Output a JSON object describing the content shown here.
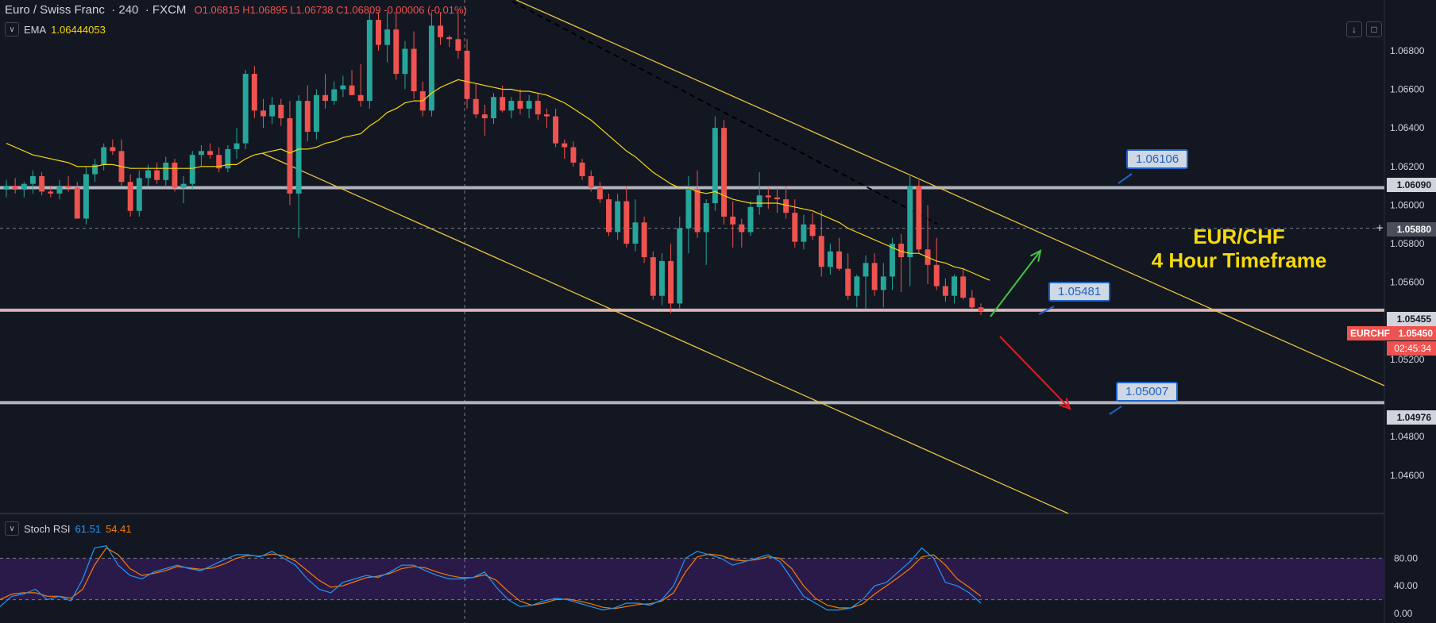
{
  "header": {
    "symbol_name": "Euro / Swiss Franc",
    "interval": "240",
    "exchange": "FXCM",
    "ohlc": "O1.06815 H1.06895 L1.06738 C1.06809 -0.00006 (-0.01%)"
  },
  "ema": {
    "label": "EMA",
    "value": "1.06444053"
  },
  "stoch": {
    "label": "Stoch RSI",
    "k_value": "61.51",
    "d_value": "54.41"
  },
  "overlay": {
    "title_line1": "EUR/CHF",
    "title_line2": "4 Hour Timeframe"
  },
  "callouts": [
    {
      "text": "1.06106"
    },
    {
      "text": "1.05481"
    },
    {
      "text": "1.05007"
    }
  ],
  "price_tags": {
    "level1": "1.06090",
    "level2": "1.05880",
    "level3": "1.05455",
    "current_symbol": "EURCHF",
    "current_price": "1.05450",
    "countdown": "02:45:34",
    "level4": "1.04976"
  },
  "colors": {
    "background": "#131722",
    "up": "#26a69a",
    "down": "#ef5350",
    "ema": "#f5d90a",
    "channel": "#e8c23a",
    "stoch_k": "#2196f3",
    "stoch_d": "#f57c00",
    "stoch_band": "#2a1a4a"
  },
  "chart_data": {
    "type": "candlestick",
    "price_axis": [
      "1.06800",
      "1.06600",
      "1.06400",
      "1.06200",
      "1.06000",
      "1.05800",
      "1.05600",
      "1.05200",
      "1.04800",
      "1.04600"
    ],
    "ylim": [
      1.0448,
      1.0696
    ],
    "horizontal_levels": [
      1.0609,
      1.05455,
      1.04976
    ],
    "stoch_axis": [
      "80.00",
      "40.00",
      "0.00"
    ],
    "stoch_band": [
      20,
      80
    ],
    "candles": [
      {
        "o": 1.0608,
        "h": 1.0613,
        "l": 1.0604,
        "c": 1.061
      },
      {
        "o": 1.061,
        "h": 1.0614,
        "l": 1.0606,
        "c": 1.0608
      },
      {
        "o": 1.0608,
        "h": 1.0612,
        "l": 1.0604,
        "c": 1.0611
      },
      {
        "o": 1.0611,
        "h": 1.0618,
        "l": 1.0606,
        "c": 1.0615
      },
      {
        "o": 1.0615,
        "h": 1.0617,
        "l": 1.0605,
        "c": 1.0607
      },
      {
        "o": 1.0607,
        "h": 1.061,
        "l": 1.0604,
        "c": 1.0606
      },
      {
        "o": 1.0606,
        "h": 1.0613,
        "l": 1.0603,
        "c": 1.061
      },
      {
        "o": 1.061,
        "h": 1.0615,
        "l": 1.0607,
        "c": 1.0609
      },
      {
        "o": 1.0609,
        "h": 1.0612,
        "l": 1.0595,
        "c": 1.0593
      },
      {
        "o": 1.0593,
        "h": 1.062,
        "l": 1.059,
        "c": 1.0616
      },
      {
        "o": 1.0616,
        "h": 1.0624,
        "l": 1.0612,
        "c": 1.0621
      },
      {
        "o": 1.0621,
        "h": 1.0632,
        "l": 1.0618,
        "c": 1.063
      },
      {
        "o": 1.063,
        "h": 1.0634,
        "l": 1.0626,
        "c": 1.0628
      },
      {
        "o": 1.0628,
        "h": 1.0634,
        "l": 1.061,
        "c": 1.0612
      },
      {
        "o": 1.0612,
        "h": 1.0616,
        "l": 1.0594,
        "c": 1.0597
      },
      {
        "o": 1.0597,
        "h": 1.0618,
        "l": 1.0594,
        "c": 1.0614
      },
      {
        "o": 1.0614,
        "h": 1.0621,
        "l": 1.061,
        "c": 1.0618
      },
      {
        "o": 1.0618,
        "h": 1.0622,
        "l": 1.0611,
        "c": 1.0613
      },
      {
        "o": 1.0613,
        "h": 1.0625,
        "l": 1.0609,
        "c": 1.0622
      },
      {
        "o": 1.0622,
        "h": 1.0624,
        "l": 1.0607,
        "c": 1.0609
      },
      {
        "o": 1.0609,
        "h": 1.0615,
        "l": 1.0601,
        "c": 1.0611
      },
      {
        "o": 1.0611,
        "h": 1.0628,
        "l": 1.0608,
        "c": 1.0626
      },
      {
        "o": 1.0626,
        "h": 1.0631,
        "l": 1.062,
        "c": 1.0628
      },
      {
        "o": 1.0628,
        "h": 1.0632,
        "l": 1.0624,
        "c": 1.0626
      },
      {
        "o": 1.0626,
        "h": 1.063,
        "l": 1.0617,
        "c": 1.0619
      },
      {
        "o": 1.0619,
        "h": 1.0631,
        "l": 1.0617,
        "c": 1.0629
      },
      {
        "o": 1.0629,
        "h": 1.064,
        "l": 1.0624,
        "c": 1.0632
      },
      {
        "o": 1.0632,
        "h": 1.067,
        "l": 1.0629,
        "c": 1.0668
      },
      {
        "o": 1.0668,
        "h": 1.0672,
        "l": 1.0645,
        "c": 1.0649
      },
      {
        "o": 1.0649,
        "h": 1.0655,
        "l": 1.064,
        "c": 1.0646
      },
      {
        "o": 1.0646,
        "h": 1.0656,
        "l": 1.0642,
        "c": 1.0652
      },
      {
        "o": 1.0652,
        "h": 1.0655,
        "l": 1.0641,
        "c": 1.0645
      },
      {
        "o": 1.0645,
        "h": 1.0654,
        "l": 1.06,
        "c": 1.0606
      },
      {
        "o": 1.0606,
        "h": 1.0657,
        "l": 1.0583,
        "c": 1.0654
      },
      {
        "o": 1.0654,
        "h": 1.0662,
        "l": 1.0633,
        "c": 1.0638
      },
      {
        "o": 1.0638,
        "h": 1.066,
        "l": 1.0634,
        "c": 1.0657
      },
      {
        "o": 1.0657,
        "h": 1.0668,
        "l": 1.065,
        "c": 1.0654
      },
      {
        "o": 1.0654,
        "h": 1.0664,
        "l": 1.0652,
        "c": 1.066
      },
      {
        "o": 1.066,
        "h": 1.0667,
        "l": 1.0656,
        "c": 1.0662
      },
      {
        "o": 1.0662,
        "h": 1.067,
        "l": 1.0659,
        "c": 1.0657
      },
      {
        "o": 1.0657,
        "h": 1.0673,
        "l": 1.0651,
        "c": 1.0654
      },
      {
        "o": 1.0654,
        "h": 1.07,
        "l": 1.065,
        "c": 1.0696
      },
      {
        "o": 1.0696,
        "h": 1.07,
        "l": 1.068,
        "c": 1.0683
      },
      {
        "o": 1.0683,
        "h": 1.07,
        "l": 1.0674,
        "c": 1.0691
      },
      {
        "o": 1.0691,
        "h": 1.07,
        "l": 1.0665,
        "c": 1.0668
      },
      {
        "o": 1.0668,
        "h": 1.0685,
        "l": 1.066,
        "c": 1.0681
      },
      {
        "o": 1.0681,
        "h": 1.069,
        "l": 1.0655,
        "c": 1.0659
      },
      {
        "o": 1.0659,
        "h": 1.0664,
        "l": 1.0646,
        "c": 1.0649
      },
      {
        "o": 1.0649,
        "h": 1.07,
        "l": 1.0646,
        "c": 1.0693
      },
      {
        "o": 1.0693,
        "h": 1.07,
        "l": 1.0683,
        "c": 1.0687
      },
      {
        "o": 1.0687,
        "h": 1.0688,
        "l": 1.0682,
        "c": 1.0686
      },
      {
        "o": 1.0686,
        "h": 1.07,
        "l": 1.0676,
        "c": 1.068
      },
      {
        "o": 1.068,
        "h": 1.0686,
        "l": 1.065,
        "c": 1.0655
      },
      {
        "o": 1.0655,
        "h": 1.0663,
        "l": 1.0645,
        "c": 1.0647
      },
      {
        "o": 1.0647,
        "h": 1.0652,
        "l": 1.0636,
        "c": 1.0645
      },
      {
        "o": 1.0645,
        "h": 1.0658,
        "l": 1.0642,
        "c": 1.0656
      },
      {
        "o": 1.0656,
        "h": 1.0662,
        "l": 1.0648,
        "c": 1.0649
      },
      {
        "o": 1.0649,
        "h": 1.0656,
        "l": 1.0645,
        "c": 1.0654
      },
      {
        "o": 1.0654,
        "h": 1.066,
        "l": 1.0647,
        "c": 1.065
      },
      {
        "o": 1.065,
        "h": 1.0657,
        "l": 1.0645,
        "c": 1.0654
      },
      {
        "o": 1.0654,
        "h": 1.0658,
        "l": 1.0644,
        "c": 1.0647
      },
      {
        "o": 1.0647,
        "h": 1.065,
        "l": 1.064,
        "c": 1.0646
      },
      {
        "o": 1.0646,
        "h": 1.065,
        "l": 1.063,
        "c": 1.0632
      },
      {
        "o": 1.0632,
        "h": 1.0634,
        "l": 1.0624,
        "c": 1.063
      },
      {
        "o": 1.063,
        "h": 1.0633,
        "l": 1.062,
        "c": 1.0622
      },
      {
        "o": 1.0622,
        "h": 1.0624,
        "l": 1.0613,
        "c": 1.0615
      },
      {
        "o": 1.0615,
        "h": 1.0618,
        "l": 1.0607,
        "c": 1.0609
      },
      {
        "o": 1.0609,
        "h": 1.0612,
        "l": 1.0601,
        "c": 1.0603
      },
      {
        "o": 1.0603,
        "h": 1.0606,
        "l": 1.0584,
        "c": 1.0586
      },
      {
        "o": 1.0586,
        "h": 1.0606,
        "l": 1.0582,
        "c": 1.0602
      },
      {
        "o": 1.0602,
        "h": 1.061,
        "l": 1.0578,
        "c": 1.058
      },
      {
        "o": 1.058,
        "h": 1.0603,
        "l": 1.0576,
        "c": 1.0591
      },
      {
        "o": 1.0591,
        "h": 1.0594,
        "l": 1.057,
        "c": 1.0573
      },
      {
        "o": 1.0573,
        "h": 1.0576,
        "l": 1.0551,
        "c": 1.0553
      },
      {
        "o": 1.0553,
        "h": 1.0575,
        "l": 1.0548,
        "c": 1.0571
      },
      {
        "o": 1.0571,
        "h": 1.058,
        "l": 1.0544,
        "c": 1.0549
      },
      {
        "o": 1.0549,
        "h": 1.0594,
        "l": 1.0546,
        "c": 1.0588
      },
      {
        "o": 1.0588,
        "h": 1.0615,
        "l": 1.0575,
        "c": 1.0608
      },
      {
        "o": 1.0608,
        "h": 1.0618,
        "l": 1.0583,
        "c": 1.0586
      },
      {
        "o": 1.0586,
        "h": 1.0603,
        "l": 1.0569,
        "c": 1.0601
      },
      {
        "o": 1.0601,
        "h": 1.0646,
        "l": 1.0597,
        "c": 1.064
      },
      {
        "o": 1.064,
        "h": 1.0644,
        "l": 1.059,
        "c": 1.0594
      },
      {
        "o": 1.0594,
        "h": 1.0602,
        "l": 1.0578,
        "c": 1.059
      },
      {
        "o": 1.059,
        "h": 1.0593,
        "l": 1.0578,
        "c": 1.0586
      },
      {
        "o": 1.0586,
        "h": 1.0602,
        "l": 1.0584,
        "c": 1.0599
      },
      {
        "o": 1.0599,
        "h": 1.0617,
        "l": 1.0595,
        "c": 1.0605
      },
      {
        "o": 1.0605,
        "h": 1.0609,
        "l": 1.0598,
        "c": 1.0604
      },
      {
        "o": 1.0604,
        "h": 1.0609,
        "l": 1.0596,
        "c": 1.0603
      },
      {
        "o": 1.0603,
        "h": 1.061,
        "l": 1.0593,
        "c": 1.0596
      },
      {
        "o": 1.0596,
        "h": 1.0603,
        "l": 1.0578,
        "c": 1.0581
      },
      {
        "o": 1.0581,
        "h": 1.0595,
        "l": 1.0577,
        "c": 1.059
      },
      {
        "o": 1.059,
        "h": 1.0596,
        "l": 1.0582,
        "c": 1.0584
      },
      {
        "o": 1.0584,
        "h": 1.0597,
        "l": 1.0563,
        "c": 1.0568
      },
      {
        "o": 1.0568,
        "h": 1.058,
        "l": 1.0564,
        "c": 1.0576
      },
      {
        "o": 1.0576,
        "h": 1.0583,
        "l": 1.0566,
        "c": 1.0567
      },
      {
        "o": 1.0567,
        "h": 1.0575,
        "l": 1.0551,
        "c": 1.0553
      },
      {
        "o": 1.0553,
        "h": 1.0564,
        "l": 1.0547,
        "c": 1.0563
      },
      {
        "o": 1.0563,
        "h": 1.0574,
        "l": 1.0546,
        "c": 1.057
      },
      {
        "o": 1.057,
        "h": 1.0575,
        "l": 1.0553,
        "c": 1.0556
      },
      {
        "o": 1.0556,
        "h": 1.057,
        "l": 1.0547,
        "c": 1.0563
      },
      {
        "o": 1.0563,
        "h": 1.0583,
        "l": 1.0556,
        "c": 1.058
      },
      {
        "o": 1.058,
        "h": 1.0585,
        "l": 1.0555,
        "c": 1.0573
      },
      {
        "o": 1.0573,
        "h": 1.0615,
        "l": 1.0558,
        "c": 1.061
      },
      {
        "o": 1.061,
        "h": 1.0613,
        "l": 1.0575,
        "c": 1.0577
      },
      {
        "o": 1.0577,
        "h": 1.06,
        "l": 1.0559,
        "c": 1.0569
      },
      {
        "o": 1.0569,
        "h": 1.0583,
        "l": 1.0556,
        "c": 1.0558
      },
      {
        "o": 1.0558,
        "h": 1.0562,
        "l": 1.055,
        "c": 1.0553
      },
      {
        "o": 1.0553,
        "h": 1.0564,
        "l": 1.0549,
        "c": 1.0563
      },
      {
        "o": 1.0563,
        "h": 1.0567,
        "l": 1.0551,
        "c": 1.0552
      },
      {
        "o": 1.0552,
        "h": 1.0556,
        "l": 1.0546,
        "c": 1.0547
      },
      {
        "o": 1.0547,
        "h": 1.0549,
        "l": 1.0543,
        "c": 1.0545
      }
    ],
    "ema_values": [
      1.0632,
      1.063,
      1.0628,
      1.0626,
      1.0625,
      1.0624,
      1.0623,
      1.0622,
      1.062,
      1.062,
      1.062,
      1.0621,
      1.0621,
      1.062,
      1.0619,
      1.0619,
      1.0619,
      1.0619,
      1.0619,
      1.0619,
      1.0619,
      1.0619,
      1.062,
      1.062,
      1.062,
      1.0621,
      1.0621,
      1.0624,
      1.0626,
      1.0627,
      1.0628,
      1.0629,
      1.0627,
      1.0629,
      1.0629,
      1.063,
      1.0632,
      1.0633,
      1.0635,
      1.0636,
      1.0637,
      1.0641,
      1.0644,
      1.0648,
      1.065,
      1.0653,
      1.0654,
      1.0654,
      1.0658,
      1.0661,
      1.0663,
      1.0665,
      1.0664,
      1.0663,
      1.0662,
      1.0661,
      1.066,
      1.066,
      1.0659,
      1.0659,
      1.0658,
      1.0657,
      1.0655,
      1.0653,
      1.065,
      1.0647,
      1.0644,
      1.064,
      1.0636,
      1.0632,
      1.0628,
      1.0625,
      1.0621,
      1.0617,
      1.0614,
      1.0611,
      1.0609,
      1.0609,
      1.0607,
      1.0606,
      1.0607,
      1.0605,
      1.0603,
      1.0602,
      1.0601,
      1.0601,
      1.0601,
      1.0601,
      1.06,
      1.0599,
      1.0598,
      1.0597,
      1.0595,
      1.0593,
      1.0591,
      1.0588,
      1.0586,
      1.0584,
      1.0582,
      1.058,
      1.0578,
      1.0576,
      1.0575,
      1.0575,
      1.0573,
      1.0571,
      1.057,
      1.0568,
      1.0567,
      1.0565,
      1.0563,
      1.0561
    ],
    "stoch_k": [
      10,
      25,
      28,
      35,
      20,
      25,
      18,
      50,
      95,
      98,
      70,
      55,
      50,
      60,
      65,
      70,
      65,
      62,
      70,
      78,
      85,
      85,
      82,
      90,
      80,
      70,
      50,
      35,
      30,
      45,
      50,
      55,
      52,
      60,
      70,
      70,
      62,
      55,
      50,
      50,
      52,
      60,
      38,
      20,
      10,
      12,
      18,
      22,
      20,
      15,
      10,
      5,
      8,
      15,
      15,
      12,
      20,
      40,
      80,
      90,
      85,
      80,
      70,
      75,
      80,
      85,
      75,
      50,
      25,
      15,
      5,
      5,
      8,
      20,
      40,
      45,
      60,
      75,
      95,
      80,
      45,
      40,
      30,
      15
    ],
    "stoch_d": [
      20,
      28,
      30,
      30,
      25,
      25,
      22,
      35,
      70,
      95,
      85,
      65,
      55,
      58,
      62,
      68,
      66,
      64,
      66,
      72,
      80,
      84,
      83,
      86,
      84,
      76,
      62,
      48,
      38,
      40,
      46,
      52,
      54,
      58,
      65,
      68,
      66,
      60,
      55,
      52,
      52,
      56,
      48,
      32,
      18,
      12,
      15,
      20,
      21,
      18,
      14,
      9,
      7,
      10,
      13,
      14,
      18,
      30,
      60,
      82,
      86,
      84,
      78,
      76,
      78,
      82,
      80,
      65,
      40,
      22,
      12,
      8,
      8,
      14,
      28,
      40,
      52,
      65,
      82,
      85,
      70,
      50,
      38,
      25
    ]
  }
}
